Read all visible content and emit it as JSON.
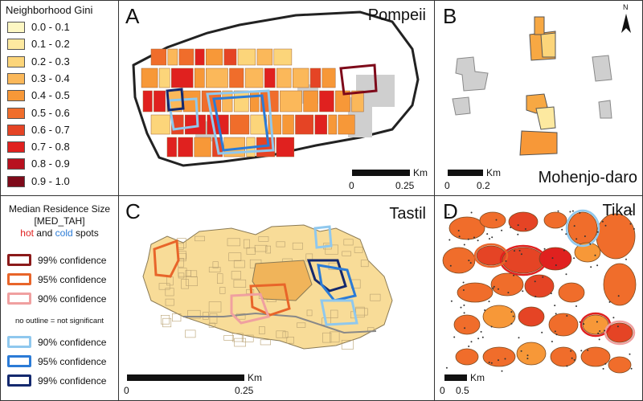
{
  "gini_legend": {
    "title": "Neighborhood Gini",
    "classes": [
      {
        "label": "0.0 - 0.1",
        "color": "#fdf7c3"
      },
      {
        "label": "0.1 - 0.2",
        "color": "#fde9a0"
      },
      {
        "label": "0.2 - 0.3",
        "color": "#fcd57a"
      },
      {
        "label": "0.3 - 0.4",
        "color": "#fbb85a"
      },
      {
        "label": "0.4 - 0.5",
        "color": "#f79838"
      },
      {
        "label": "0.5 - 0.6",
        "color": "#f06d2b"
      },
      {
        "label": "0.6 - 0.7",
        "color": "#e54425"
      },
      {
        "label": "0.7 - 0.8",
        "color": "#e0211f"
      },
      {
        "label": "0.8 - 0.9",
        "color": "#b8111f"
      },
      {
        "label": "0.9 - 1.0",
        "color": "#7e0a1a"
      }
    ]
  },
  "hotspot_legend": {
    "title_line1": "Median Residence Size",
    "title_line2": "[MED_TAH]",
    "hot_word": "hot",
    "and_word": "and",
    "cold_word": "cold",
    "spots_word": "spots",
    "hot_color": "#e0211f",
    "cold_color": "#2b7bd6",
    "items": [
      {
        "label": "99% confidence",
        "color": "#8b1a1a"
      },
      {
        "label": "95% confidence",
        "color": "#e8652a"
      },
      {
        "label": "90% confidence",
        "color": "#f0a0a0"
      }
    ],
    "note": "no outline = not significant",
    "cold_items": [
      {
        "label": "90% confidence",
        "color": "#8fc8ee"
      },
      {
        "label": "95% confidence",
        "color": "#2b7bd6"
      },
      {
        "label": "99% confidence",
        "color": "#14296e"
      }
    ]
  },
  "panels": {
    "A": {
      "letter": "A",
      "title": "Pompeii",
      "scale_unit": "Km",
      "scale_start": "0",
      "scale_end": "0.25"
    },
    "B": {
      "letter": "B",
      "title": "Mohenjo-daro",
      "scale_unit": "Km",
      "scale_start": "0",
      "scale_end": "0.2",
      "north": "N"
    },
    "C": {
      "letter": "C",
      "title": "Tastil",
      "scale_unit": "Km",
      "scale_start": "0",
      "scale_end": "0.25"
    },
    "D": {
      "letter": "D",
      "title": "Tikal",
      "scale_unit": "Km",
      "scale_start": "0",
      "scale_end": "0.5"
    }
  }
}
